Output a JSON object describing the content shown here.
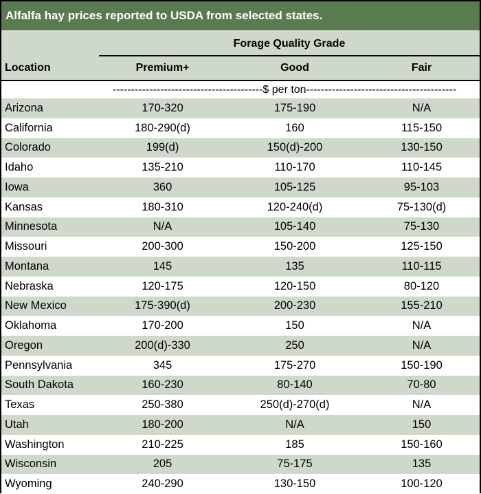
{
  "title": "Alfalfa hay prices reported to USDA from selected states.",
  "header": {
    "group": "Forage Quality Grade",
    "location": "Location",
    "premium": "Premium+",
    "good": "Good",
    "fair": "Fair",
    "units": "-----------------------------------------$ per ton-----------------------------------------"
  },
  "colors": {
    "title_bg": "#5a7a4f",
    "band": "#cfd9cb"
  },
  "rows": [
    {
      "location": "Arizona",
      "premium": "170-320",
      "good": "175-190",
      "fair": "N/A"
    },
    {
      "location": "California",
      "premium": "180-290(d)",
      "good": "160",
      "fair": "115-150"
    },
    {
      "location": "Colorado",
      "premium": "199(d)",
      "good": "150(d)-200",
      "fair": "130-150"
    },
    {
      "location": "Idaho",
      "premium": "135-210",
      "good": "110-170",
      "fair": "110-145"
    },
    {
      "location": "Iowa",
      "premium": "360",
      "good": "105-125",
      "fair": "95-103"
    },
    {
      "location": "Kansas",
      "premium": "180-310",
      "good": "120-240(d)",
      "fair": "75-130(d)"
    },
    {
      "location": "Minnesota",
      "premium": "N/A",
      "good": "105-140",
      "fair": "75-130"
    },
    {
      "location": "Missouri",
      "premium": "200-300",
      "good": "150-200",
      "fair": "125-150"
    },
    {
      "location": "Montana",
      "premium": "145",
      "good": "135",
      "fair": "110-115"
    },
    {
      "location": "Nebraska",
      "premium": "120-175",
      "good": "120-150",
      "fair": "80-120"
    },
    {
      "location": "New Mexico",
      "premium": "175-390(d)",
      "good": "200-230",
      "fair": "155-210"
    },
    {
      "location": "Oklahoma",
      "premium": "170-200",
      "good": "150",
      "fair": "N/A"
    },
    {
      "location": "Oregon",
      "premium": "200(d)-330",
      "good": "250",
      "fair": "N/A"
    },
    {
      "location": "Pennsylvania",
      "premium": "345",
      "good": "175-270",
      "fair": "150-190"
    },
    {
      "location": "South Dakota",
      "premium": "160-230",
      "good": "80-140",
      "fair": "70-80"
    },
    {
      "location": "Texas",
      "premium": "250-380",
      "good": "250(d)-270(d)",
      "fair": "N/A"
    },
    {
      "location": "Utah",
      "premium": "180-200",
      "good": "N/A",
      "fair": "150"
    },
    {
      "location": "Washington",
      "premium": "210-225",
      "good": "185",
      "fair": "150-160"
    },
    {
      "location": "Wisconsin",
      "premium": "205",
      "good": "75-175",
      "fair": "135"
    },
    {
      "location": "Wyoming",
      "premium": "240-290",
      "good": "130-150",
      "fair": "100-120"
    }
  ]
}
